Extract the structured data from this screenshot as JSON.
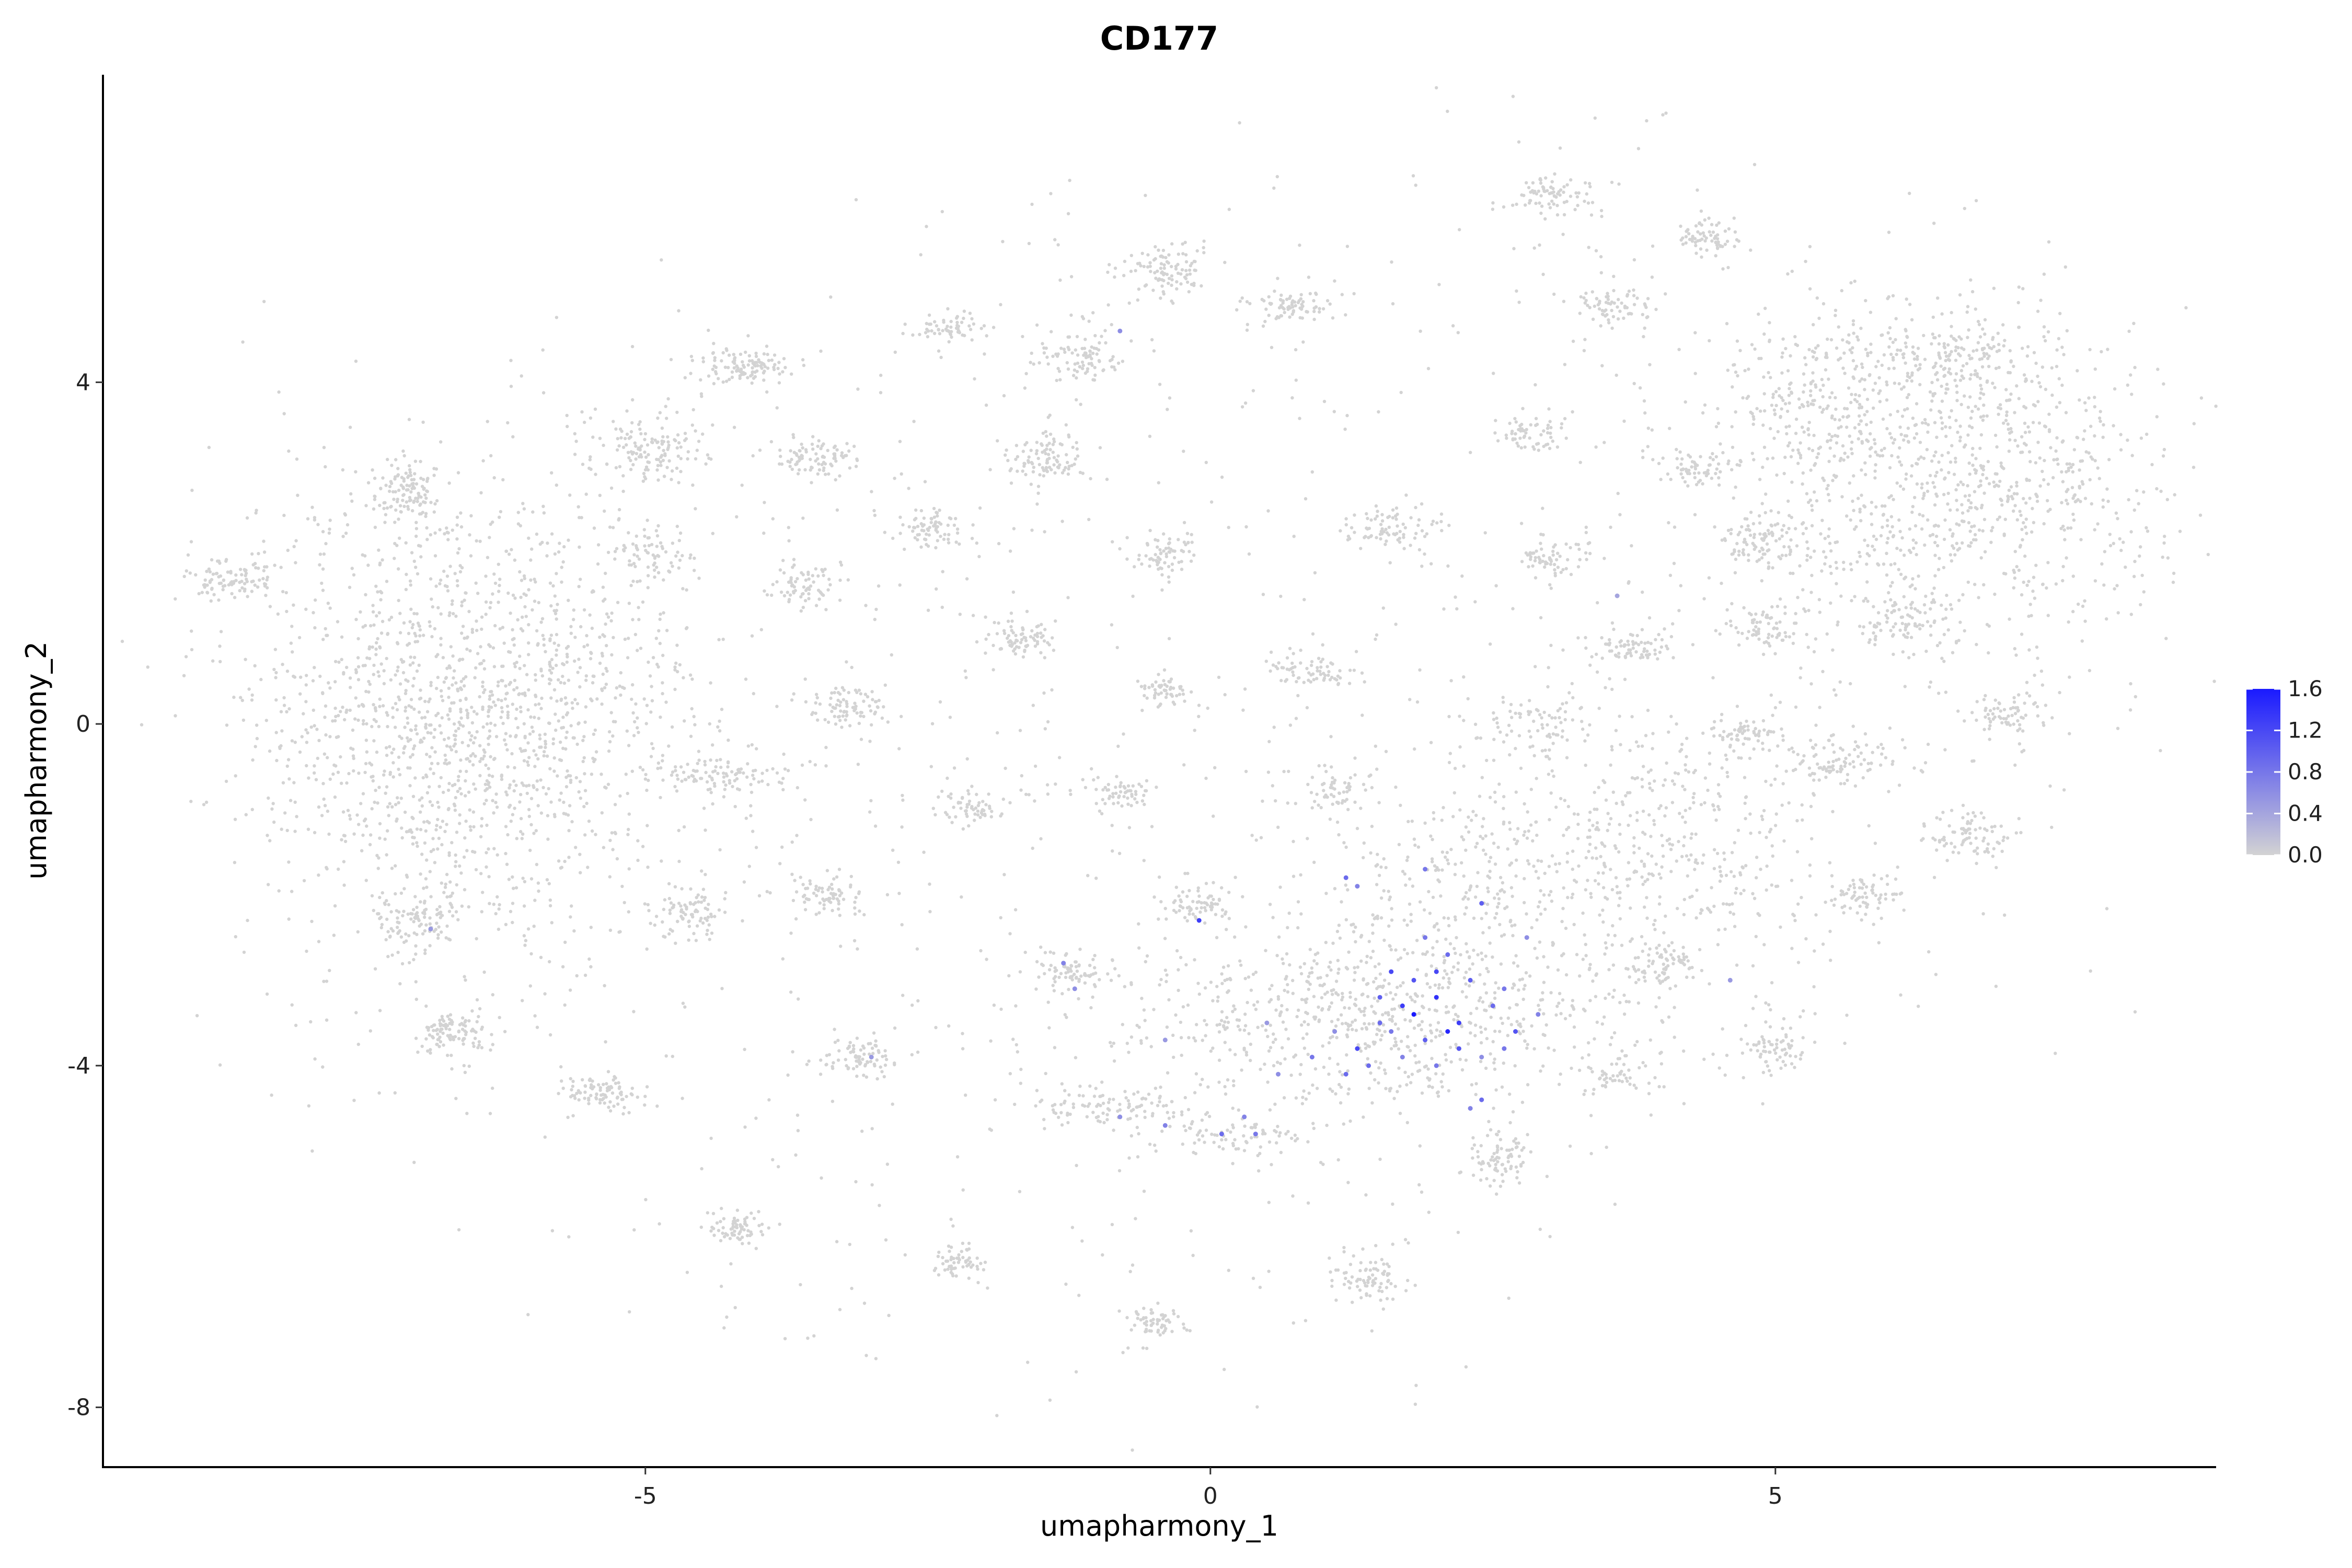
{
  "chart_data": {
    "type": "scatter",
    "title": "CD177",
    "xlabel": "umapharmony_1",
    "ylabel": "umapharmony_2",
    "xlim": [
      -9.8,
      8.9
    ],
    "ylim": [
      -8.7,
      7.6
    ],
    "x_ticks": [
      -5,
      0,
      5
    ],
    "x_tick_labels": [
      "-5",
      "0",
      "5"
    ],
    "y_ticks": [
      4,
      0,
      -4,
      -8
    ],
    "y_tick_labels": [
      "4",
      "0",
      "-4",
      "-8"
    ],
    "grid": false,
    "legend_placement": "right",
    "color_scale": {
      "low_color": "#d3d3d3",
      "high_color": "#1a1aff",
      "min": 0.0,
      "max": 1.6,
      "tick_values": [
        1.6,
        1.2,
        0.8,
        0.4,
        0.0
      ],
      "tick_labels": [
        "1.6",
        "1.2",
        "0.8",
        "0.4",
        "0.0"
      ]
    },
    "clusters": [
      {
        "center": [
          -6.7,
          0.0
        ],
        "spread": [
          0.95,
          1.45
        ],
        "count": 1400
      },
      {
        "center": [
          -5.6,
          0.5
        ],
        "spread": [
          0.5,
          0.6
        ],
        "count": 180
      },
      {
        "center": [
          -8.7,
          1.7
        ],
        "spread": [
          0.18,
          0.12
        ],
        "count": 90
      },
      {
        "center": [
          -7.1,
          2.7
        ],
        "spread": [
          0.15,
          0.18
        ],
        "count": 110
      },
      {
        "center": [
          -7.0,
          -2.3
        ],
        "spread": [
          0.2,
          0.18
        ],
        "count": 100
      },
      {
        "center": [
          -6.7,
          -3.6
        ],
        "spread": [
          0.18,
          0.12
        ],
        "count": 100
      },
      {
        "center": [
          -5.4,
          -4.3
        ],
        "spread": [
          0.18,
          0.1
        ],
        "count": 90
      },
      {
        "center": [
          -5.0,
          3.2
        ],
        "spread": [
          0.3,
          0.2
        ],
        "count": 140
      },
      {
        "center": [
          -5.0,
          2.0
        ],
        "spread": [
          0.2,
          0.15
        ],
        "count": 70
      },
      {
        "center": [
          -4.1,
          4.2
        ],
        "spread": [
          0.2,
          0.12
        ],
        "count": 110
      },
      {
        "center": [
          -3.5,
          3.1
        ],
        "spread": [
          0.2,
          0.12
        ],
        "count": 90
      },
      {
        "center": [
          -3.6,
          1.6
        ],
        "spread": [
          0.15,
          0.12
        ],
        "count": 70
      },
      {
        "center": [
          -3.2,
          0.2
        ],
        "spread": [
          0.18,
          0.12
        ],
        "count": 80
      },
      {
        "center": [
          -4.3,
          -0.6
        ],
        "spread": [
          0.3,
          0.12
        ],
        "count": 100
      },
      {
        "center": [
          -4.6,
          -2.2
        ],
        "spread": [
          0.15,
          0.15
        ],
        "count": 80
      },
      {
        "center": [
          -3.4,
          -2.0
        ],
        "spread": [
          0.15,
          0.12
        ],
        "count": 70
      },
      {
        "center": [
          -3.1,
          -3.9
        ],
        "spread": [
          0.18,
          0.12
        ],
        "count": 80
      },
      {
        "center": [
          -4.2,
          -5.9
        ],
        "spread": [
          0.15,
          0.1
        ],
        "count": 70
      },
      {
        "center": [
          -2.2,
          -6.3
        ],
        "spread": [
          0.12,
          0.1
        ],
        "count": 60
      },
      {
        "center": [
          -2.3,
          4.6
        ],
        "spread": [
          0.15,
          0.1
        ],
        "count": 60
      },
      {
        "center": [
          -2.5,
          2.3
        ],
        "spread": [
          0.15,
          0.12
        ],
        "count": 70
      },
      {
        "center": [
          -1.7,
          1.0
        ],
        "spread": [
          0.15,
          0.12
        ],
        "count": 70
      },
      {
        "center": [
          -2.1,
          -1.0
        ],
        "spread": [
          0.15,
          0.1
        ],
        "count": 60
      },
      {
        "center": [
          -1.5,
          3.1
        ],
        "spread": [
          0.2,
          0.15
        ],
        "count": 100
      },
      {
        "center": [
          -1.2,
          4.3
        ],
        "spread": [
          0.18,
          0.15
        ],
        "count": 90
      },
      {
        "center": [
          -0.4,
          5.3
        ],
        "spread": [
          0.2,
          0.15
        ],
        "count": 100
      },
      {
        "center": [
          0.7,
          4.9
        ],
        "spread": [
          0.2,
          0.1
        ],
        "count": 80
      },
      {
        "center": [
          -0.4,
          2.0
        ],
        "spread": [
          0.15,
          0.12
        ],
        "count": 70
      },
      {
        "center": [
          -0.4,
          0.4
        ],
        "spread": [
          0.12,
          0.1
        ],
        "count": 60
      },
      {
        "center": [
          -0.8,
          -0.8
        ],
        "spread": [
          0.15,
          0.1
        ],
        "count": 60
      },
      {
        "center": [
          -0.1,
          -2.1
        ],
        "spread": [
          0.15,
          0.12
        ],
        "count": 70
      },
      {
        "center": [
          -1.2,
          -2.9
        ],
        "spread": [
          0.2,
          0.12
        ],
        "count": 80
      },
      {
        "center": [
          -0.9,
          -4.5
        ],
        "spread": [
          0.35,
          0.12
        ],
        "count": 100
      },
      {
        "center": [
          0.9,
          0.6
        ],
        "spread": [
          0.2,
          0.12
        ],
        "count": 70
      },
      {
        "center": [
          1.1,
          -0.8
        ],
        "spread": [
          0.18,
          0.15
        ],
        "count": 60
      },
      {
        "center": [
          1.6,
          2.3
        ],
        "spread": [
          0.2,
          0.12
        ],
        "count": 80
      },
      {
        "center": [
          2.8,
          3.4
        ],
        "spread": [
          0.15,
          0.1
        ],
        "count": 60
      },
      {
        "center": [
          3.0,
          6.2
        ],
        "spread": [
          0.2,
          0.12
        ],
        "count": 80
      },
      {
        "center": [
          3.6,
          4.9
        ],
        "spread": [
          0.2,
          0.12
        ],
        "count": 70
      },
      {
        "center": [
          3.0,
          1.9
        ],
        "spread": [
          0.15,
          0.12
        ],
        "count": 60
      },
      {
        "center": [
          2.9,
          0.0
        ],
        "spread": [
          0.25,
          0.2
        ],
        "count": 80
      },
      {
        "center": [
          1.5,
          -3.4
        ],
        "spread": [
          1.2,
          0.55
        ],
        "count": 750
      },
      {
        "center": [
          2.1,
          -1.8
        ],
        "spread": [
          0.6,
          0.6
        ],
        "count": 200
      },
      {
        "center": [
          3.8,
          -1.4
        ],
        "spread": [
          0.8,
          0.75
        ],
        "count": 420
      },
      {
        "center": [
          4.0,
          -2.8
        ],
        "spread": [
          0.15,
          0.12
        ],
        "count": 70
      },
      {
        "center": [
          2.6,
          -5.1
        ],
        "spread": [
          0.15,
          0.15
        ],
        "count": 80
      },
      {
        "center": [
          3.6,
          -4.1
        ],
        "spread": [
          0.15,
          0.1
        ],
        "count": 50
      },
      {
        "center": [
          1.4,
          -6.5
        ],
        "spread": [
          0.15,
          0.15
        ],
        "count": 80
      },
      {
        "center": [
          -0.5,
          -7.0
        ],
        "spread": [
          0.12,
          0.1
        ],
        "count": 60
      },
      {
        "center": [
          0.2,
          -4.8
        ],
        "spread": [
          0.3,
          0.12
        ],
        "count": 80
      },
      {
        "center": [
          3.7,
          0.9
        ],
        "spread": [
          0.2,
          0.12
        ],
        "count": 70
      },
      {
        "center": [
          4.3,
          3.0
        ],
        "spread": [
          0.2,
          0.1
        ],
        "count": 60
      },
      {
        "center": [
          4.4,
          5.7
        ],
        "spread": [
          0.15,
          0.12
        ],
        "count": 70
      },
      {
        "center": [
          4.8,
          2.1
        ],
        "spread": [
          0.2,
          0.15
        ],
        "count": 80
      },
      {
        "center": [
          4.9,
          1.1
        ],
        "spread": [
          0.15,
          0.12
        ],
        "count": 70
      },
      {
        "center": [
          4.7,
          -0.1
        ],
        "spread": [
          0.15,
          0.1
        ],
        "count": 60
      },
      {
        "center": [
          5.3,
          3.8
        ],
        "spread": [
          0.35,
          0.5
        ],
        "count": 200
      },
      {
        "center": [
          6.6,
          2.8
        ],
        "spread": [
          1.0,
          0.9
        ],
        "count": 900
      },
      {
        "center": [
          6.6,
          4.3
        ],
        "spread": [
          0.4,
          0.3
        ],
        "count": 180
      },
      {
        "center": [
          6.1,
          1.2
        ],
        "spread": [
          0.2,
          0.2
        ],
        "count": 80
      },
      {
        "center": [
          5.5,
          -0.4
        ],
        "spread": [
          0.3,
          0.15
        ],
        "count": 100
      },
      {
        "center": [
          7.1,
          0.1
        ],
        "spread": [
          0.2,
          0.1
        ],
        "count": 70
      },
      {
        "center": [
          6.7,
          -1.3
        ],
        "spread": [
          0.2,
          0.15
        ],
        "count": 80
      },
      {
        "center": [
          5.8,
          -2.0
        ],
        "spread": [
          0.15,
          0.12
        ],
        "count": 70
      },
      {
        "center": [
          5.0,
          -3.8
        ],
        "spread": [
          0.15,
          0.15
        ],
        "count": 70
      }
    ],
    "background_scatter_count": 1200,
    "expressing_cells": [
      [
        1.2,
        -1.8,
        0.9
      ],
      [
        1.3,
        -1.9,
        0.7
      ],
      [
        1.9,
        -1.7,
        0.8
      ],
      [
        2.4,
        -2.1,
        1.0
      ],
      [
        1.9,
        -2.5,
        0.8
      ],
      [
        2.1,
        -2.7,
        0.9
      ],
      [
        2.8,
        -2.5,
        0.6
      ],
      [
        1.6,
        -2.9,
        1.2
      ],
      [
        1.8,
        -3.0,
        1.1
      ],
      [
        2.0,
        -3.2,
        1.4
      ],
      [
        2.3,
        -3.0,
        1.0
      ],
      [
        2.5,
        -3.3,
        0.9
      ],
      [
        1.7,
        -3.3,
        1.3
      ],
      [
        1.5,
        -3.5,
        0.9
      ],
      [
        2.2,
        -3.5,
        1.3
      ],
      [
        2.7,
        -3.6,
        1.1
      ],
      [
        2.9,
        -3.4,
        0.7
      ],
      [
        2.6,
        -3.8,
        0.8
      ],
      [
        1.9,
        -3.7,
        1.0
      ],
      [
        1.3,
        -3.8,
        1.2
      ],
      [
        1.1,
        -3.6,
        0.6
      ],
      [
        0.9,
        -3.9,
        0.8
      ],
      [
        1.4,
        -4.0,
        0.9
      ],
      [
        1.7,
        -3.9,
        0.7
      ],
      [
        2.0,
        -4.0,
        0.8
      ],
      [
        2.4,
        -3.9,
        0.6
      ],
      [
        2.4,
        -4.4,
        0.9
      ],
      [
        2.3,
        -4.5,
        0.7
      ],
      [
        0.6,
        -4.1,
        0.6
      ],
      [
        0.3,
        -4.6,
        0.7
      ],
      [
        0.4,
        -4.8,
        0.8
      ],
      [
        0.1,
        -4.8,
        0.9
      ],
      [
        0.5,
        -3.5,
        0.5
      ],
      [
        -0.4,
        -4.7,
        0.7
      ],
      [
        -0.8,
        -4.6,
        0.6
      ],
      [
        -0.4,
        -3.7,
        0.5
      ],
      [
        -0.1,
        -2.3,
        1.3
      ],
      [
        -1.3,
        -2.8,
        0.7
      ],
      [
        -1.2,
        -3.1,
        0.6
      ],
      [
        -3.0,
        -3.9,
        0.5
      ],
      [
        -6.9,
        -2.4,
        0.5
      ],
      [
        -0.8,
        4.6,
        0.6
      ],
      [
        4.6,
        -3.0,
        0.5
      ],
      [
        3.6,
        1.5,
        0.4
      ],
      [
        1.8,
        -3.4,
        1.6
      ],
      [
        2.1,
        -3.6,
        1.5
      ],
      [
        1.2,
        -4.1,
        0.9
      ],
      [
        2.2,
        -3.8,
        1.1
      ],
      [
        2.6,
        -3.1,
        0.8
      ],
      [
        1.5,
        -3.2,
        1.0
      ],
      [
        2.0,
        -2.9,
        1.2
      ],
      [
        1.6,
        -3.6,
        0.8
      ]
    ]
  }
}
